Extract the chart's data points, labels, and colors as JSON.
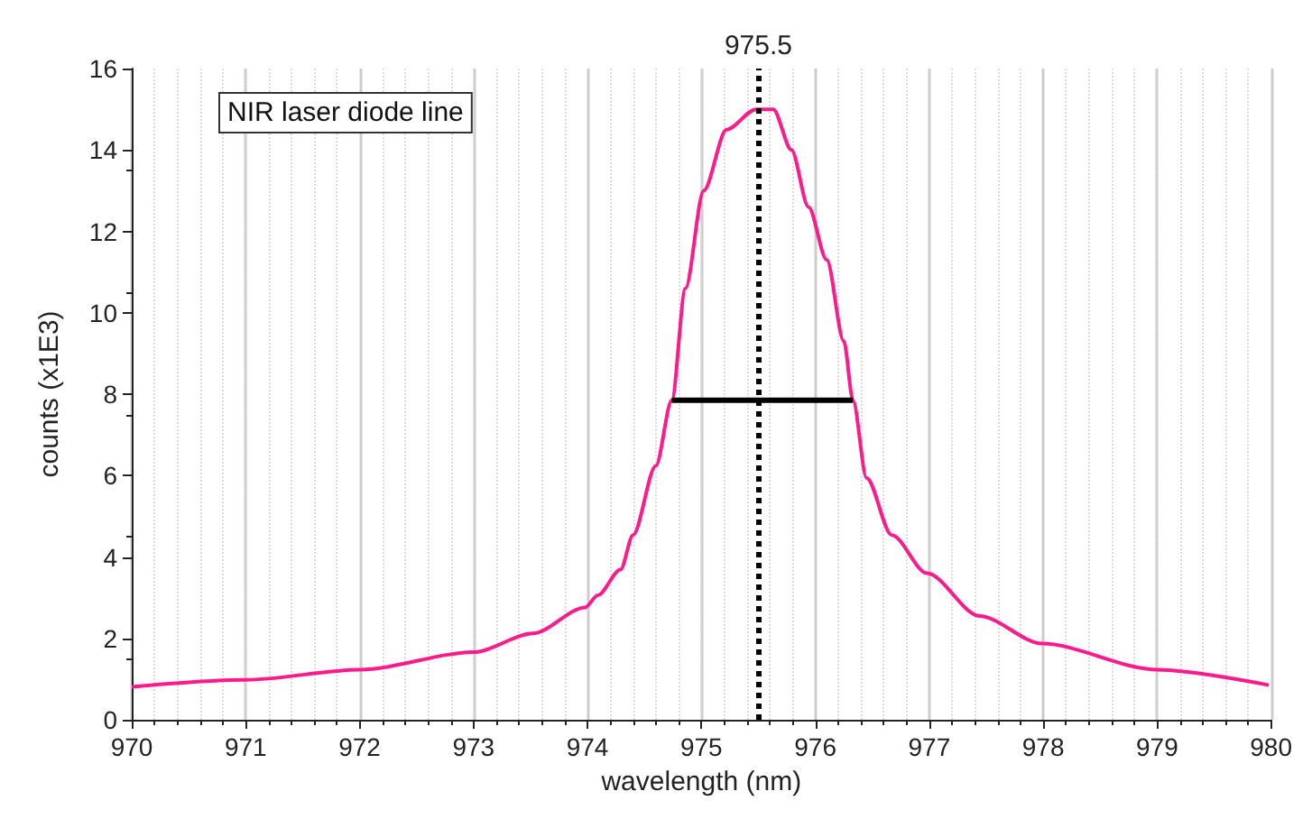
{
  "chart_data": {
    "type": "line",
    "xlabel": "wavelength (nm)",
    "ylabel": "counts (x1E3)",
    "annotations": [
      "NIR laser diode line"
    ],
    "xlim": [
      970,
      980
    ],
    "xticks": [
      970,
      971,
      972,
      973,
      974,
      975,
      976,
      977,
      978,
      979,
      980
    ],
    "ylim": [
      0,
      16
    ],
    "yticks": [
      0,
      2,
      4,
      6,
      8,
      10,
      12,
      14,
      16
    ],
    "grid": "x",
    "marker": "none",
    "series": [
      {
        "color": "#ff1a8c",
        "x": [
          970.0,
          971.0,
          972.0,
          973.0,
          973.52,
          973.98,
          974.09,
          974.29,
          974.4,
          974.6,
          974.74,
          974.86,
          975.02,
          975.22,
          975.48,
          975.63,
          975.79,
          975.94,
          976.1,
          976.25,
          976.33,
          976.45,
          976.67,
          976.98,
          977.44,
          977.99,
          979.0,
          979.98
        ],
        "values": [
          0.81,
          0.98,
          1.23,
          1.66,
          2.12,
          2.76,
          3.06,
          3.69,
          4.54,
          6.24,
          7.85,
          10.6,
          13.0,
          14.5,
          15.0,
          15.0,
          14.0,
          12.6,
          11.3,
          9.3,
          7.85,
          5.94,
          4.54,
          3.6,
          2.55,
          1.87,
          1.23,
          0.85
        ]
      },
      {
        "color": "#000000",
        "x": [
          974.74,
          976.33
        ],
        "values": [
          7.85,
          7.85
        ],
        "line_style": "solid"
      }
    ],
    "ref_lines": [
      {
        "axis": "x",
        "value": 975.5,
        "label": "975.5",
        "color": "#000000",
        "line_style": "dotted"
      }
    ]
  }
}
